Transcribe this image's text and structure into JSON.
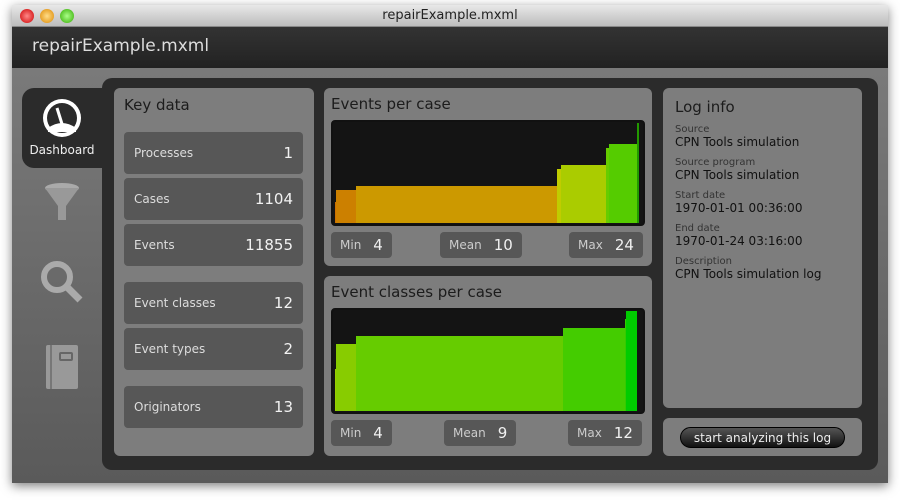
{
  "window": {
    "title": "repairExample.mxml",
    "header": "repairExample.mxml"
  },
  "nav": [
    {
      "label": "Dashboard",
      "icon": "gauge-icon"
    },
    {
      "icon": "funnel-icon"
    },
    {
      "icon": "magnifier-icon"
    },
    {
      "icon": "book-icon"
    }
  ],
  "key_data": {
    "title": "Key data",
    "rows": [
      {
        "label": "Processes",
        "value": "1"
      },
      {
        "label": "Cases",
        "value": "1104"
      },
      {
        "label": "Events",
        "value": "11855"
      },
      {
        "label": "Event classes",
        "value": "12"
      },
      {
        "label": "Event types",
        "value": "2"
      },
      {
        "label": "Originators",
        "value": "13"
      }
    ]
  },
  "chart_data": [
    {
      "type": "bar",
      "title": "Events per case",
      "stats": {
        "min_label": "Min",
        "min": "4",
        "mean_label": "Mean",
        "mean": "10",
        "max_label": "Max",
        "max": "24"
      },
      "ylim": [
        0,
        24
      ],
      "segments": [
        {
          "share": 0.004,
          "value": 5,
          "color": "#cc6f00"
        },
        {
          "share": 0.065,
          "value": 8,
          "color": "#cc8000"
        },
        {
          "share": 0.66,
          "value": 9,
          "color": "#cc9900"
        },
        {
          "share": 0.016,
          "value": 13,
          "color": "#c0cc00"
        },
        {
          "share": 0.147,
          "value": 14,
          "color": "#aacc00"
        },
        {
          "share": 0.01,
          "value": 18,
          "color": "#66cc00"
        },
        {
          "share": 0.092,
          "value": 19,
          "color": "#55cc00"
        },
        {
          "share": 0.006,
          "value": 24,
          "color": "#229900"
        }
      ]
    },
    {
      "type": "bar",
      "title": "Event classes per case",
      "stats": {
        "min_label": "Min",
        "min": "4",
        "mean_label": "Mean",
        "mean": "9",
        "max_label": "Max",
        "max": "12"
      },
      "ylim": [
        0,
        12
      ],
      "segments": [
        {
          "share": 0.004,
          "value": 5,
          "color": "#99cc00"
        },
        {
          "share": 0.065,
          "value": 8,
          "color": "#88cc00"
        },
        {
          "share": 0.68,
          "value": 9,
          "color": "#66cc00"
        },
        {
          "share": 0.205,
          "value": 10,
          "color": "#44cc00"
        },
        {
          "share": 0.004,
          "value": 11,
          "color": "#33cc00"
        },
        {
          "share": 0.035,
          "value": 12,
          "color": "#00cc00"
        }
      ]
    }
  ],
  "log_info": {
    "title": "Log info",
    "fields": [
      {
        "label": "Source",
        "value": "CPN Tools simulation"
      },
      {
        "label": "Source program",
        "value": "CPN Tools simulation"
      },
      {
        "label": "Start date",
        "value": "1970-01-01 00:36:00"
      },
      {
        "label": "End date",
        "value": "1970-01-24 03:16:00"
      },
      {
        "label": "Description",
        "value": "CPN Tools simulation log"
      }
    ]
  },
  "action_button": "start analyzing this log"
}
